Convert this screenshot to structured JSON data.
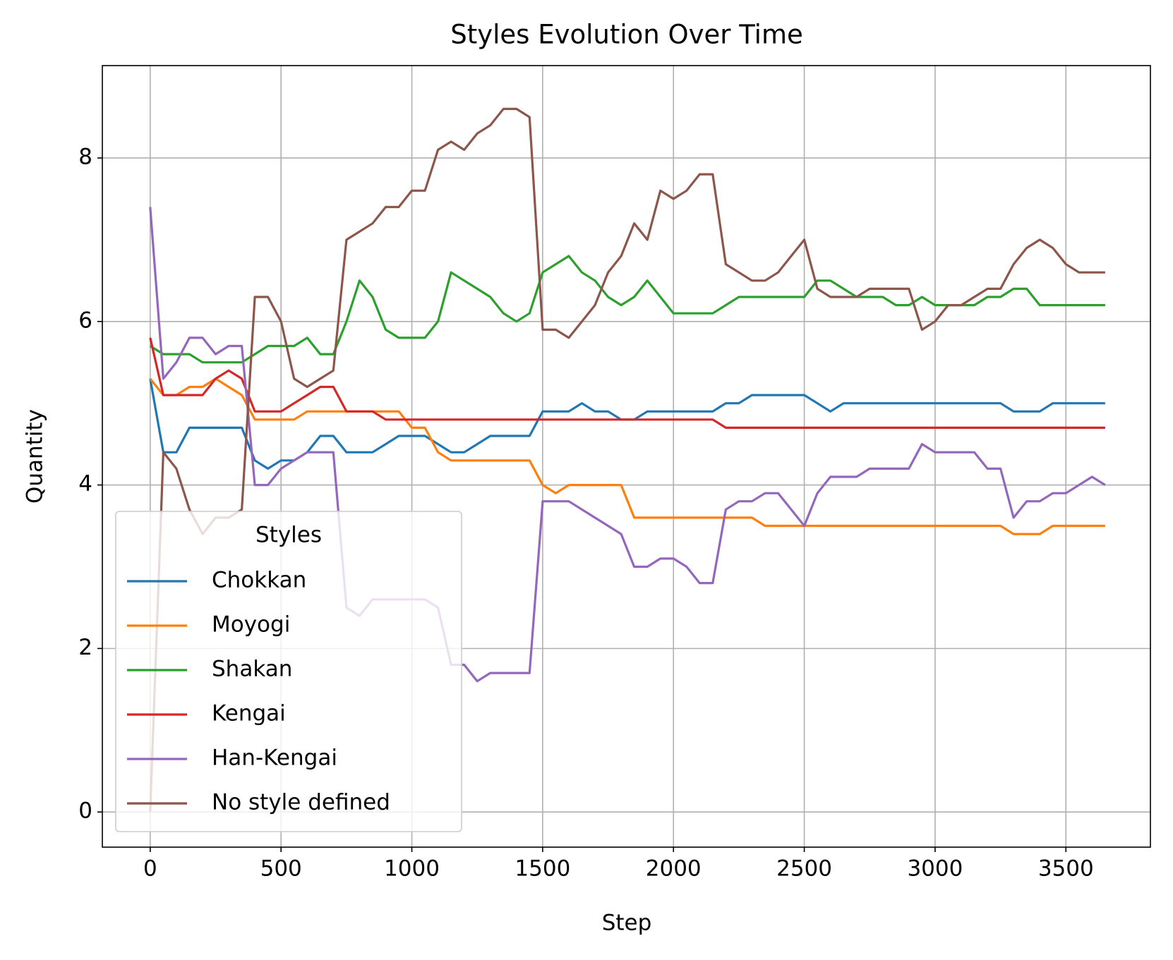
{
  "chart_data": {
    "type": "line",
    "title": "Styles Evolution Over Time",
    "xlabel": "Step",
    "ylabel": "Quantity",
    "x": [
      0,
      50,
      100,
      150,
      200,
      250,
      300,
      350,
      400,
      450,
      500,
      550,
      600,
      650,
      700,
      750,
      800,
      850,
      900,
      950,
      1000,
      1050,
      1100,
      1150,
      1200,
      1250,
      1300,
      1350,
      1400,
      1450,
      1500,
      1550,
      1600,
      1650,
      1700,
      1750,
      1800,
      1850,
      1900,
      1950,
      2000,
      2050,
      2100,
      2150,
      2200,
      2250,
      2300,
      2350,
      2400,
      2450,
      2500,
      2550,
      2600,
      2650,
      2700,
      2750,
      2800,
      2850,
      2900,
      2950,
      3000,
      3050,
      3100,
      3150,
      3200,
      3250,
      3300,
      3350,
      3400,
      3450,
      3500,
      3550,
      3600,
      3650
    ],
    "series": [
      {
        "name": "Chokkan",
        "color": "#1f77b4",
        "values": [
          5.3,
          4.4,
          4.4,
          4.7,
          4.7,
          4.7,
          4.7,
          4.7,
          4.3,
          4.2,
          4.3,
          4.3,
          4.4,
          4.6,
          4.6,
          4.4,
          4.4,
          4.4,
          4.5,
          4.6,
          4.6,
          4.6,
          4.5,
          4.4,
          4.4,
          4.5,
          4.6,
          4.6,
          4.6,
          4.6,
          4.9,
          4.9,
          4.9,
          5.0,
          4.9,
          4.9,
          4.8,
          4.8,
          4.9,
          4.9,
          4.9,
          4.9,
          4.9,
          4.9,
          5.0,
          5.0,
          5.1,
          5.1,
          5.1,
          5.1,
          5.1,
          5.0,
          4.9,
          5.0,
          5.0,
          5.0,
          5.0,
          5.0,
          5.0,
          5.0,
          5.0,
          5.0,
          5.0,
          5.0,
          5.0,
          5.0,
          4.9,
          4.9,
          4.9,
          5.0,
          5.0,
          5.0,
          5.0,
          5.0
        ]
      },
      {
        "name": "Moyogi",
        "color": "#ff7f0e",
        "values": [
          5.3,
          5.1,
          5.1,
          5.2,
          5.2,
          5.3,
          5.2,
          5.1,
          4.8,
          4.8,
          4.8,
          4.8,
          4.9,
          4.9,
          4.9,
          4.9,
          4.9,
          4.9,
          4.9,
          4.9,
          4.7,
          4.7,
          4.4,
          4.3,
          4.3,
          4.3,
          4.3,
          4.3,
          4.3,
          4.3,
          4.0,
          3.9,
          4.0,
          4.0,
          4.0,
          4.0,
          4.0,
          3.6,
          3.6,
          3.6,
          3.6,
          3.6,
          3.6,
          3.6,
          3.6,
          3.6,
          3.6,
          3.5,
          3.5,
          3.5,
          3.5,
          3.5,
          3.5,
          3.5,
          3.5,
          3.5,
          3.5,
          3.5,
          3.5,
          3.5,
          3.5,
          3.5,
          3.5,
          3.5,
          3.5,
          3.5,
          3.4,
          3.4,
          3.4,
          3.5,
          3.5,
          3.5,
          3.5,
          3.5
        ]
      },
      {
        "name": "Shakan",
        "color": "#2ca02c",
        "values": [
          5.7,
          5.6,
          5.6,
          5.6,
          5.5,
          5.5,
          5.5,
          5.5,
          5.6,
          5.7,
          5.7,
          5.7,
          5.8,
          5.6,
          5.6,
          6.0,
          6.5,
          6.3,
          5.9,
          5.8,
          5.8,
          5.8,
          6.0,
          6.6,
          6.5,
          6.4,
          6.3,
          6.1,
          6.0,
          6.1,
          6.6,
          6.7,
          6.8,
          6.6,
          6.5,
          6.3,
          6.2,
          6.3,
          6.5,
          6.3,
          6.1,
          6.1,
          6.1,
          6.1,
          6.2,
          6.3,
          6.3,
          6.3,
          6.3,
          6.3,
          6.3,
          6.5,
          6.5,
          6.4,
          6.3,
          6.3,
          6.3,
          6.2,
          6.2,
          6.3,
          6.2,
          6.2,
          6.2,
          6.2,
          6.3,
          6.3,
          6.4,
          6.4,
          6.2,
          6.2,
          6.2,
          6.2,
          6.2,
          6.2
        ]
      },
      {
        "name": "Kengai",
        "color": "#d62728",
        "values": [
          5.8,
          5.1,
          5.1,
          5.1,
          5.1,
          5.3,
          5.4,
          5.3,
          4.9,
          4.9,
          4.9,
          5.0,
          5.1,
          5.2,
          5.2,
          4.9,
          4.9,
          4.9,
          4.8,
          4.8,
          4.8,
          4.8,
          4.8,
          4.8,
          4.8,
          4.8,
          4.8,
          4.8,
          4.8,
          4.8,
          4.8,
          4.8,
          4.8,
          4.8,
          4.8,
          4.8,
          4.8,
          4.8,
          4.8,
          4.8,
          4.8,
          4.8,
          4.8,
          4.8,
          4.7,
          4.7,
          4.7,
          4.7,
          4.7,
          4.7,
          4.7,
          4.7,
          4.7,
          4.7,
          4.7,
          4.7,
          4.7,
          4.7,
          4.7,
          4.7,
          4.7,
          4.7,
          4.7,
          4.7,
          4.7,
          4.7,
          4.7,
          4.7,
          4.7,
          4.7,
          4.7,
          4.7,
          4.7,
          4.7
        ]
      },
      {
        "name": "Han-Kengai",
        "color": "#9467bd",
        "values": [
          7.4,
          5.3,
          5.5,
          5.8,
          5.8,
          5.6,
          5.7,
          5.7,
          4.0,
          4.0,
          4.2,
          4.3,
          4.4,
          4.4,
          4.4,
          2.5,
          2.4,
          2.6,
          2.6,
          2.6,
          2.6,
          2.6,
          2.5,
          1.8,
          1.8,
          1.6,
          1.7,
          1.7,
          1.7,
          1.7,
          3.8,
          3.8,
          3.8,
          3.7,
          3.6,
          3.5,
          3.4,
          3.0,
          3.0,
          3.1,
          3.1,
          3.0,
          2.8,
          2.8,
          3.7,
          3.8,
          3.8,
          3.9,
          3.9,
          3.7,
          3.5,
          3.9,
          4.1,
          4.1,
          4.1,
          4.2,
          4.2,
          4.2,
          4.2,
          4.5,
          4.4,
          4.4,
          4.4,
          4.4,
          4.2,
          4.2,
          3.6,
          3.8,
          3.8,
          3.9,
          3.9,
          4.0,
          4.1,
          4.0
        ]
      },
      {
        "name": "No style defined",
        "color": "#8c564b",
        "values": [
          0.0,
          4.4,
          4.2,
          3.7,
          3.4,
          3.6,
          3.6,
          3.7,
          6.3,
          6.3,
          6.0,
          5.3,
          5.2,
          5.3,
          5.4,
          7.0,
          7.1,
          7.2,
          7.4,
          7.4,
          7.6,
          7.6,
          8.1,
          8.2,
          8.1,
          8.3,
          8.4,
          8.6,
          8.6,
          8.5,
          5.9,
          5.9,
          5.8,
          6.0,
          6.2,
          6.6,
          6.8,
          7.2,
          7.0,
          7.6,
          7.5,
          7.6,
          7.8,
          7.8,
          6.7,
          6.6,
          6.5,
          6.5,
          6.6,
          6.8,
          7.0,
          6.4,
          6.3,
          6.3,
          6.3,
          6.4,
          6.4,
          6.4,
          6.4,
          5.9,
          6.0,
          6.2,
          6.2,
          6.3,
          6.4,
          6.4,
          6.7,
          6.9,
          7.0,
          6.9,
          6.7,
          6.6,
          6.6,
          6.6
        ]
      }
    ],
    "xlim": [
      -183,
      3823
    ],
    "ylim": [
      -0.43,
      9.13
    ],
    "xticks": [
      0,
      500,
      1000,
      1500,
      2000,
      2500,
      3000,
      3500
    ],
    "yticks": [
      0,
      2,
      4,
      6,
      8
    ],
    "grid": true,
    "legend_title": "Styles",
    "legend_position": "lower left"
  }
}
